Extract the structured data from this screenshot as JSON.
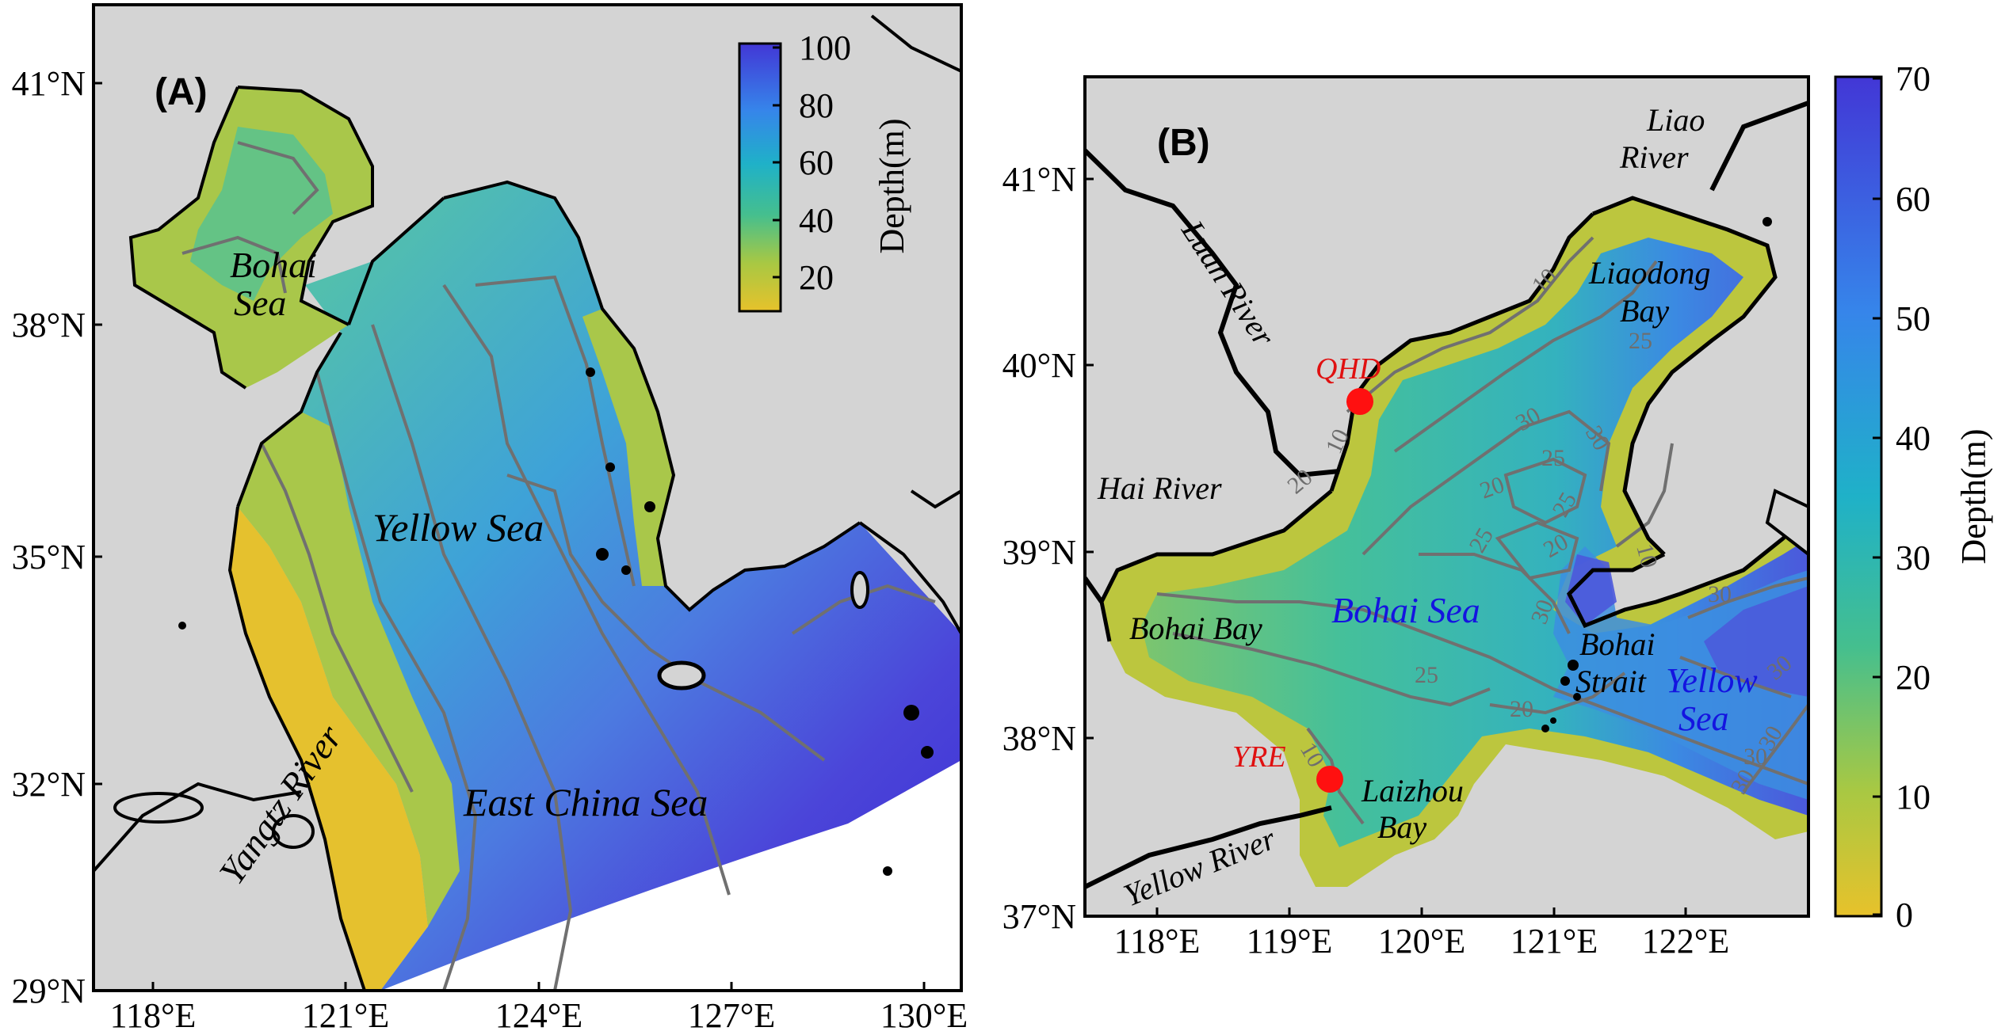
{
  "panel_a": {
    "label": "(A)",
    "lon_ticks": [
      "118°E",
      "121°E",
      "124°E",
      "127°E",
      "130°E"
    ],
    "lat_ticks": [
      "41°N",
      "38°N",
      "35°N",
      "32°N",
      "29°N"
    ],
    "places": {
      "bohai_1": "Bohai",
      "bohai_2": "Sea",
      "yellow_sea": "Yellow Sea",
      "east_china_sea": "East China Sea",
      "yangtze": "Yangtz River"
    },
    "colorbar": {
      "ticks": [
        "100",
        "80",
        "60",
        "40",
        "20"
      ],
      "title": "Depth(m)",
      "range": [
        10,
        100
      ]
    }
  },
  "panel_b": {
    "label": "(B)",
    "lon_ticks": [
      "118°E",
      "119°E",
      "120°E",
      "121°E",
      "122°E"
    ],
    "lat_ticks": [
      "41°N",
      "40°N",
      "39°N",
      "38°N",
      "37°N"
    ],
    "places": {
      "liao_1": "Liao",
      "liao_2": "River",
      "liaodong_1": "Liaodong",
      "liaodong_2": "Bay",
      "luan_river": "Luan River",
      "qhd": "QHD",
      "hai_river": "Hai River",
      "bohai_bay": "Bohai Bay",
      "bohai_sea": "Bohai Sea",
      "bohai_strait_1": "Bohai",
      "bohai_strait_2": "Strait",
      "yellow_1": "Yellow",
      "yellow_2": "Sea",
      "yre": "YRE",
      "laizhou_1": "Laizhou",
      "laizhou_2": "Bay",
      "yellow_river": "Yellow River"
    },
    "contour_labels": [
      "10",
      "25",
      "30",
      "30",
      "25",
      "20",
      "10",
      "20",
      "25",
      "25",
      "30",
      "20",
      "20",
      "25",
      "10",
      "10",
      "30",
      "30",
      "30",
      "30",
      "30"
    ],
    "colorbar": {
      "ticks": [
        "70",
        "60",
        "50",
        "40",
        "30",
        "20",
        "10",
        "0"
      ],
      "title": "Depth(m)",
      "range": [
        0,
        70
      ]
    }
  },
  "colors": {
    "land": "#d4d4d4",
    "shallow": "#e5c12e",
    "mid": "#38b8b6",
    "deep": "#3f3fd8",
    "contour": "#707070",
    "station": "#ff1010"
  }
}
